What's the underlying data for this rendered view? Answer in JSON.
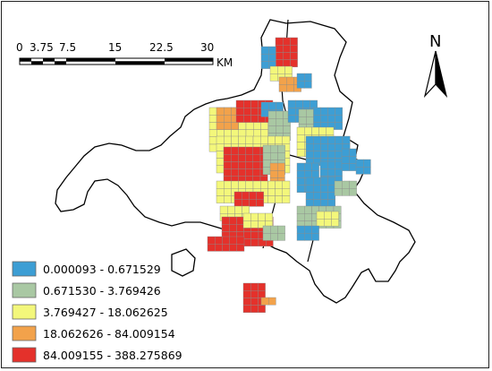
{
  "scale_bar": {
    "ticks": [
      "0",
      "3.75",
      "7.5",
      "15",
      "22.5",
      "30"
    ],
    "unit": "KM"
  },
  "north_arrow": {
    "label": "N"
  },
  "legend": {
    "items": [
      {
        "label": "0.000093 - 0.671529",
        "color": "#3d9ed4"
      },
      {
        "label": "0.671530 - 3.769426",
        "color": "#a9c8a3"
      },
      {
        "label": "3.769427 - 18.062625",
        "color": "#f3f77b"
      },
      {
        "label": "18.062626 - 84.009154",
        "color": "#f2a24b"
      },
      {
        "label": "84.009155 - 388.275869",
        "color": "#e4312b"
      }
    ]
  },
  "colors": {
    "boundary": "#000000",
    "grid_stroke": "#8a8a8a"
  }
}
